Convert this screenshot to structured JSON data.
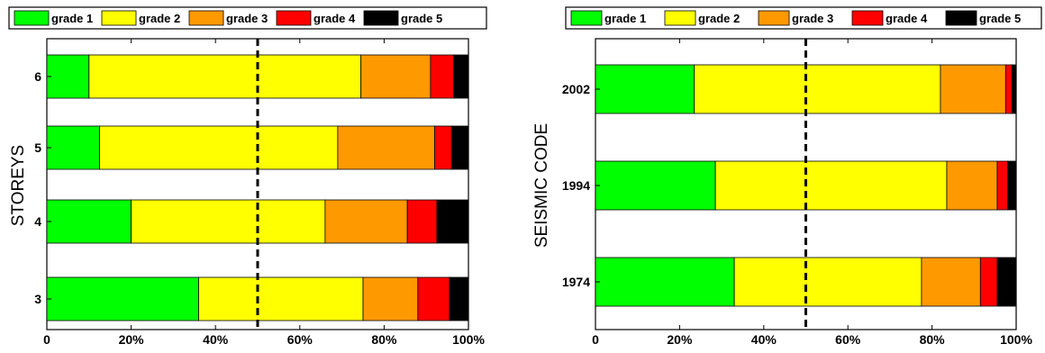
{
  "chart_data": [
    {
      "type": "bar",
      "orientation": "horizontal",
      "stacked": true,
      "categories": [
        "3",
        "4",
        "5",
        "6"
      ],
      "ylabel": "STOREYS",
      "xlim": [
        0,
        100
      ],
      "xticks": [
        "0",
        "20%",
        "40%",
        "60%",
        "80%",
        "100%"
      ],
      "reference_line": 50,
      "legend_position": "top",
      "series": [
        {
          "name": "grade 1",
          "color": "#00ff00",
          "values": [
            36,
            20,
            12.5,
            10
          ]
        },
        {
          "name": "grade 2",
          "color": "#ffff00",
          "values": [
            39,
            46,
            56.5,
            64.5
          ]
        },
        {
          "name": "grade 3",
          "color": "#ff9900",
          "values": [
            13,
            19.5,
            23,
            16.5
          ]
        },
        {
          "name": "grade 4",
          "color": "#ff0000",
          "values": [
            7.5,
            7,
            4,
            5.5
          ]
        },
        {
          "name": "grade 5",
          "color": "#000000",
          "values": [
            4.5,
            7.5,
            4,
            3.5
          ]
        }
      ]
    },
    {
      "type": "bar",
      "orientation": "horizontal",
      "stacked": true,
      "categories": [
        "1974",
        "1994",
        "2002"
      ],
      "ylabel": "SEISMIC CODE",
      "xlim": [
        0,
        100
      ],
      "xticks": [
        "0",
        "20%",
        "40%",
        "60%",
        "80%",
        "100%"
      ],
      "reference_line": 50,
      "legend_position": "top",
      "series": [
        {
          "name": "grade 1",
          "color": "#00ff00",
          "values": [
            33,
            28.5,
            23.5
          ]
        },
        {
          "name": "grade 2",
          "color": "#ffff00",
          "values": [
            44.5,
            55,
            58.5
          ]
        },
        {
          "name": "grade 3",
          "color": "#ff9900",
          "values": [
            14,
            12,
            15.5
          ]
        },
        {
          "name": "grade 4",
          "color": "#ff0000",
          "values": [
            4,
            2.5,
            1.5
          ]
        },
        {
          "name": "grade 5",
          "color": "#000000",
          "values": [
            4.5,
            2,
            1
          ]
        }
      ]
    }
  ]
}
